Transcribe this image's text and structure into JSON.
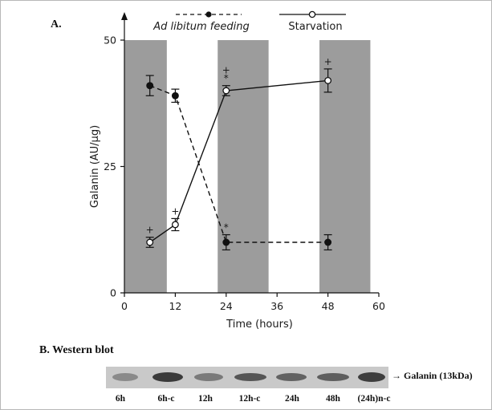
{
  "panel_a_label": "A.",
  "chart_data": {
    "type": "line",
    "title": "",
    "xlabel": "Time (hours)",
    "ylabel": "Galanin (AU/µg)",
    "xlim": [
      0,
      60
    ],
    "ylim": [
      0,
      50
    ],
    "x_ticks": [
      "0",
      "12",
      "24",
      "36",
      "48",
      "60"
    ],
    "y_ticks": [
      "0",
      "25",
      "50"
    ],
    "shaded_intervals": [
      [
        0,
        10
      ],
      [
        22,
        34
      ],
      [
        46,
        58
      ]
    ],
    "legend_position": "top",
    "series": [
      {
        "name": "Ad libitum feeding",
        "style": "dashed",
        "marker": "filled-circle",
        "x": [
          6,
          12,
          24,
          48
        ],
        "y": [
          41,
          39,
          10,
          10
        ],
        "err": [
          2,
          1.3,
          1.5,
          1.5
        ],
        "annotations": [
          "",
          "",
          "*",
          ""
        ]
      },
      {
        "name": "Starvation",
        "style": "solid",
        "marker": "open-circle",
        "x": [
          6,
          12,
          24,
          48
        ],
        "y": [
          10,
          13.5,
          40,
          42
        ],
        "err": [
          1,
          1.2,
          1,
          2.3
        ],
        "annotations": [
          "+",
          "+",
          "+*",
          "+"
        ]
      }
    ]
  },
  "western_blot": {
    "title": "B. Western blot",
    "target_label": "Galanin (13kDa)",
    "lanes": [
      "6h",
      "6h-c",
      "12h",
      "12h-c",
      "24h",
      "48h",
      "(24h)n-c"
    ]
  }
}
